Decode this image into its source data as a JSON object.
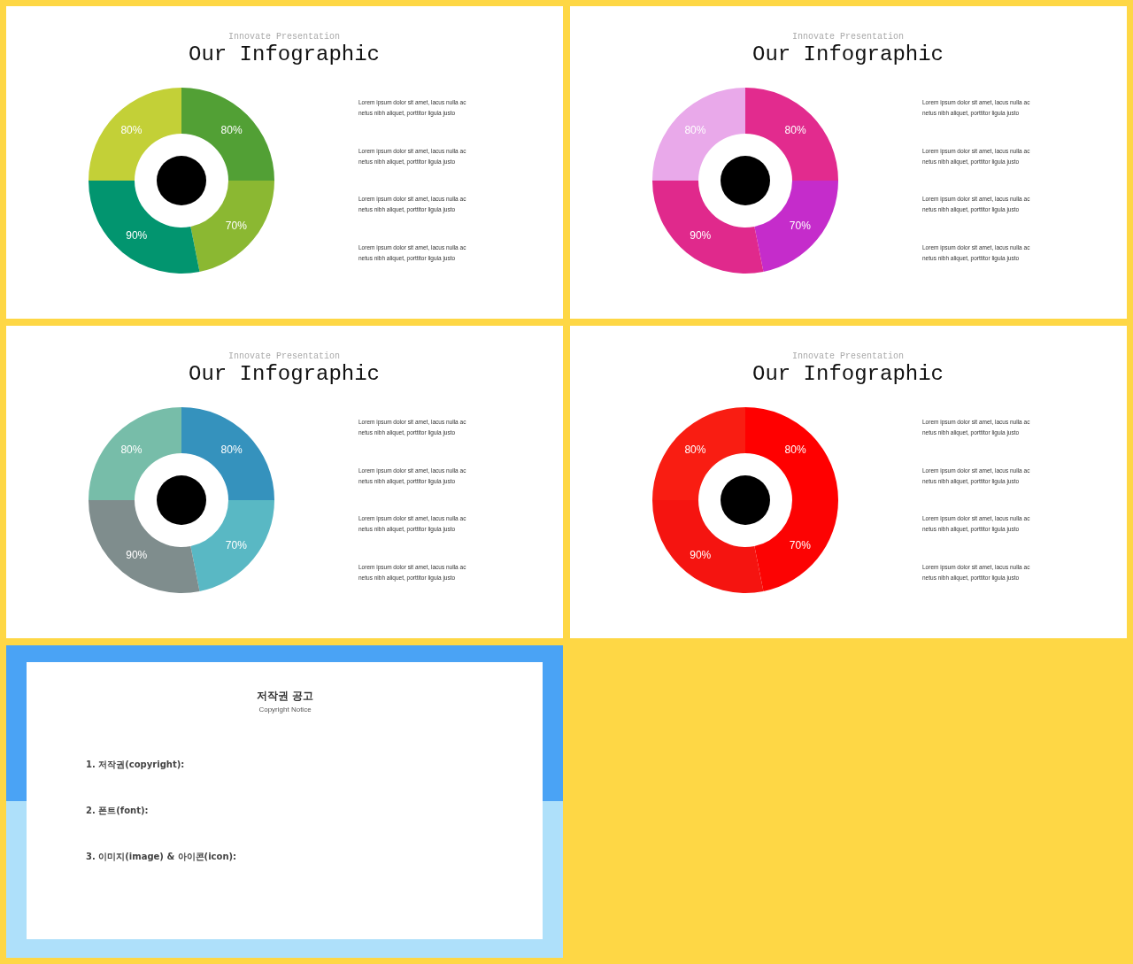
{
  "chart_data": [
    {
      "type": "donut",
      "subtitle": "Innovate Presentation",
      "title": "Our Infographic",
      "categories": [
        null,
        null,
        null,
        null
      ],
      "values": [
        80,
        70,
        90,
        80
      ],
      "value_labels": [
        "80%",
        "70%",
        "90%",
        "80%"
      ],
      "colors": [
        "#52a035",
        "#8bb832",
        "#02956f",
        "#c3d037"
      ],
      "annotations": [
        "Lorem ipsum dolor sit amet, lacus nulla ac netus nibh aliquet, porttitor ligula justo",
        "Lorem ipsum dolor sit amet, lacus nulla ac netus nibh aliquet, porttitor ligula justo",
        "Lorem ipsum dolor sit amet, lacus nulla ac netus nibh aliquet, porttitor ligula justo",
        "Lorem ipsum dolor sit amet, lacus nulla ac netus nibh aliquet, porttitor ligula justo"
      ]
    },
    {
      "type": "donut",
      "subtitle": "Innovate Presentation",
      "title": "Our Infographic",
      "categories": [
        null,
        null,
        null,
        null
      ],
      "values": [
        80,
        70,
        90,
        80
      ],
      "value_labels": [
        "80%",
        "70%",
        "90%",
        "80%"
      ],
      "colors": [
        "#e22b8e",
        "#c52ccb",
        "#e0298c",
        "#e9a9ea"
      ],
      "annotations": [
        "Lorem ipsum dolor sit amet, lacus nulla ac netus nibh aliquet, porttitor ligula justo",
        "Lorem ipsum dolor sit amet, lacus nulla ac netus nibh aliquet, porttitor ligula justo",
        "Lorem ipsum dolor sit amet, lacus nulla ac netus nibh aliquet, porttitor ligula justo",
        "Lorem ipsum dolor sit amet, lacus nulla ac netus nibh aliquet, porttitor ligula justo"
      ]
    },
    {
      "type": "donut",
      "subtitle": "Innovate Presentation",
      "title": "Our Infographic",
      "categories": [
        null,
        null,
        null,
        null
      ],
      "values": [
        80,
        70,
        90,
        80
      ],
      "value_labels": [
        "80%",
        "70%",
        "90%",
        "80%"
      ],
      "colors": [
        "#3592bd",
        "#59b8c4",
        "#7f8d8d",
        "#77bda9"
      ],
      "annotations": [
        "Lorem ipsum dolor sit amet, lacus nulla ac netus nibh aliquet, porttitor ligula justo",
        "Lorem ipsum dolor sit amet, lacus nulla ac netus nibh aliquet, porttitor ligula justo",
        "Lorem ipsum dolor sit amet, lacus nulla ac netus nibh aliquet, porttitor ligula justo",
        "Lorem ipsum dolor sit amet, lacus nulla ac netus nibh aliquet, porttitor ligula justo"
      ]
    },
    {
      "type": "donut",
      "subtitle": "Innovate Presentation",
      "title": "Our Infographic",
      "categories": [
        null,
        null,
        null,
        null
      ],
      "values": [
        80,
        70,
        90,
        80
      ],
      "value_labels": [
        "80%",
        "70%",
        "90%",
        "80%"
      ],
      "colors": [
        "#ff0000",
        "#fc0303",
        "#f51410",
        "#f91d12"
      ],
      "annotations": [
        "Lorem ipsum dolor sit amet, lacus nulla ac netus nibh aliquet, porttitor ligula justo",
        "Lorem ipsum dolor sit amet, lacus nulla ac netus nibh aliquet, porttitor ligula justo",
        "Lorem ipsum dolor sit amet, lacus nulla ac netus nibh aliquet, porttitor ligula justo",
        "Lorem ipsum dolor sit amet, lacus nulla ac netus nibh aliquet, porttitor ligula justo"
      ]
    },
    {
      "type": "other",
      "title": "저작권 공고",
      "subtitle": "Copyright Notice",
      "annotations": [
        "1. 저작권(copyright):",
        "2. 폰트(font):",
        "3. 이미지(image) & 아이콘(icon):"
      ]
    }
  ]
}
